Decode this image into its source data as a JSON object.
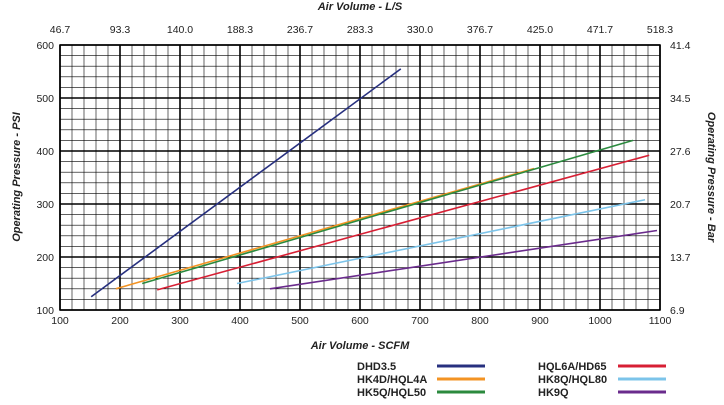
{
  "chart_data": {
    "type": "line",
    "title": "",
    "xlabel": "Air Volume - SCFM",
    "ylabel": "Operating Pressure - PSI",
    "x2label": "Air Volume - L/S",
    "y2label": "Operating Pressure - Bar",
    "xlim": [
      100,
      1100
    ],
    "ylim": [
      100,
      600
    ],
    "xticks": [
      "100",
      "200",
      "300",
      "400",
      "500",
      "600",
      "700",
      "800",
      "900",
      "1000",
      "1100"
    ],
    "yticks": [
      "100",
      "200",
      "300",
      "400",
      "500",
      "600"
    ],
    "x2ticks": [
      "46.7",
      "93.3",
      "140.0",
      "188.3",
      "236.7",
      "283.3",
      "330.0",
      "376.7",
      "425.0",
      "471.7",
      "518.3"
    ],
    "y2ticks": [
      "6.9",
      "13.7",
      "20.7",
      "27.6",
      "34.5",
      "41.4"
    ],
    "grid": true,
    "legend_position": "bottom-right",
    "series": [
      {
        "name": "DHD3.5",
        "color": "#27307f",
        "x": [
          152,
          668
        ],
        "y": [
          125,
          555
        ]
      },
      {
        "name": "HK4D/HQL4A",
        "color": "#f39323",
        "x": [
          193,
          890
        ],
        "y": [
          140,
          367
        ]
      },
      {
        "name": "HK5Q/HQL50",
        "color": "#2b8a3e",
        "x": [
          237,
          1055
        ],
        "y": [
          150,
          420
        ]
      },
      {
        "name": "HQL6A/HD65",
        "color": "#d71f34",
        "x": [
          262,
          1082
        ],
        "y": [
          138,
          392
        ]
      },
      {
        "name": "HK8Q/HQL80",
        "color": "#7cc4ea",
        "x": [
          395,
          1075
        ],
        "y": [
          150,
          308
        ]
      },
      {
        "name": "HK9Q",
        "color": "#6a2b8c",
        "x": [
          450,
          1095
        ],
        "y": [
          140,
          250
        ]
      }
    ]
  }
}
